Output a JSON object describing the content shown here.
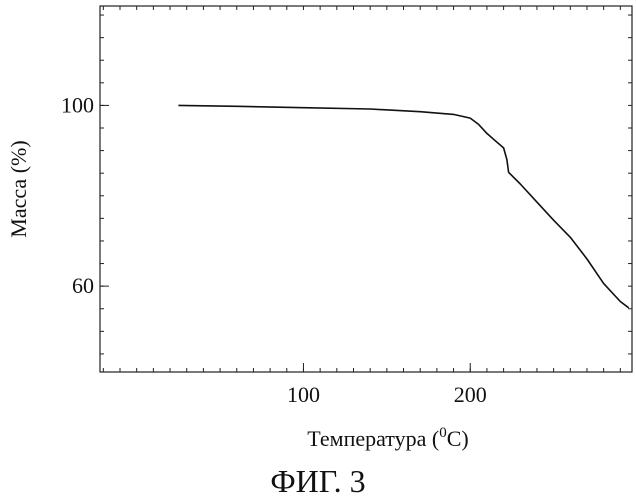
{
  "chart_data": {
    "type": "line",
    "title": "",
    "xlabel": "Температура (",
    "xlabel_sup": "0",
    "xlabel_tail": "C)",
    "ylabel": "Масса (%)",
    "caption": "ФИГ. 3",
    "xlim": [
      -22,
      297
    ],
    "ylim": [
      41,
      122
    ],
    "x_ticks": [
      100,
      200
    ],
    "x_tick_labels": [
      "100",
      "200"
    ],
    "y_ticks": [
      60,
      100
    ],
    "y_tick_labels": [
      "60",
      "100"
    ],
    "grid": false,
    "series": [
      {
        "x": [
          25,
          60,
          100,
          140,
          170,
          190,
          200,
          205,
          210,
          215,
          220,
          222,
          223,
          230,
          240,
          250,
          260,
          270,
          280,
          290,
          295
        ],
        "y": [
          100,
          99.8,
          99.5,
          99.2,
          98.6,
          98,
          97.2,
          95.8,
          93.8,
          92.2,
          90.6,
          88,
          85.2,
          82.6,
          78.6,
          74.6,
          70.8,
          66,
          60.6,
          56.6,
          55.2
        ]
      }
    ]
  }
}
